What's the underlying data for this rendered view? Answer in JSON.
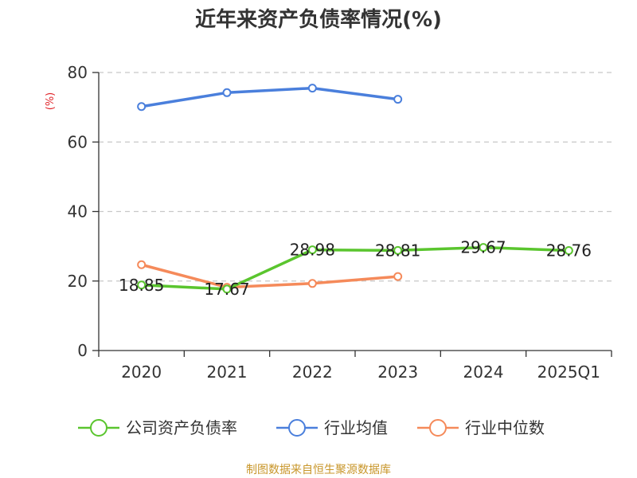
{
  "chart_data": {
    "type": "line",
    "title": "近年来资产负债率情况(%)",
    "ylabel": "(%)",
    "xlabel": "",
    "categories": [
      "2020",
      "2021",
      "2022",
      "2023",
      "2024",
      "2025Q1"
    ],
    "ylim": [
      0,
      80
    ],
    "yticks": [
      0,
      20,
      40,
      60,
      80
    ],
    "grid": true,
    "legend_position": "bottom",
    "series": [
      {
        "name": "公司资产负债率",
        "color": "#5ac52e",
        "values": [
          18.85,
          17.67,
          28.98,
          28.81,
          29.67,
          28.76
        ],
        "labels": [
          "18.85",
          "17.67",
          "28.98",
          "28.81",
          "29.67",
          "28.76"
        ]
      },
      {
        "name": "行业均值",
        "color": "#4a7fdc",
        "values": [
          70.2,
          74.2,
          75.5,
          72.3,
          null,
          null
        ]
      },
      {
        "name": "行业中位数",
        "color": "#f58a5a",
        "values": [
          24.7,
          18.2,
          19.3,
          21.3,
          null,
          null
        ]
      }
    ],
    "source": "制图数据来自恒生聚源数据库"
  }
}
